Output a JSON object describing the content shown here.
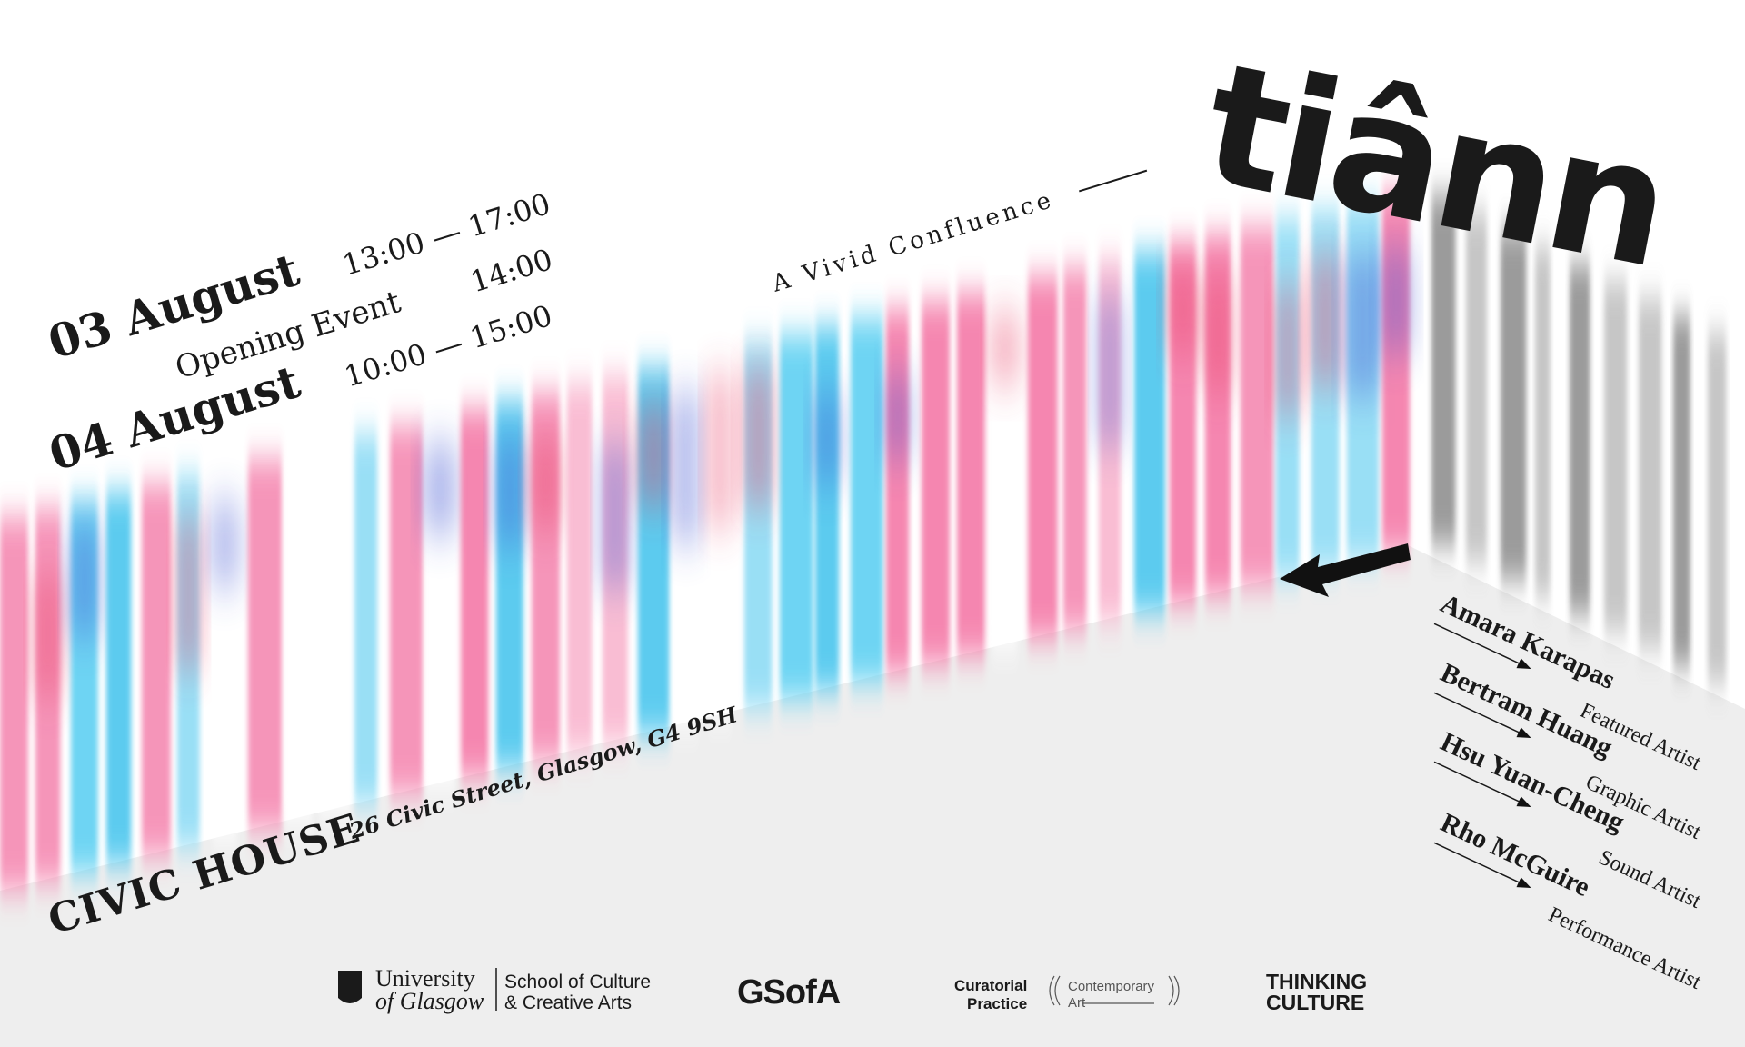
{
  "poster": {
    "title": "tiânn",
    "subtitle": "A Vivid Confluence",
    "schedule": [
      {
        "date": "03 August",
        "time": "13:00 — 17:00"
      },
      {
        "event": "Opening Event",
        "time": "14:00"
      },
      {
        "date": "04 August",
        "time": "10:00 — 15:00"
      }
    ],
    "venue": {
      "name": "CIVIC HOUSE",
      "address": "26 Civic Street, Glasgow, G4 9SH"
    },
    "artists": [
      {
        "name": "Amara Karapas",
        "role": "Featured Artist"
      },
      {
        "name": "Bertram Huang",
        "role": "Graphic Artist"
      },
      {
        "name": "Hsu Yuan-Cheng",
        "role": "Sound Artist"
      },
      {
        "name": "Rho McGuire",
        "role": "Performance Artist"
      }
    ],
    "logos": {
      "university": [
        "University",
        "of Glasgow"
      ],
      "school": [
        "School of Culture",
        "& Creative Arts"
      ],
      "gsofa": "GSofA",
      "curatorial": [
        "Curatorial",
        "Practice"
      ],
      "contemporary": [
        "Contemporary",
        "Art"
      ],
      "thinking": [
        "THINKING",
        "CULTURE"
      ]
    }
  }
}
